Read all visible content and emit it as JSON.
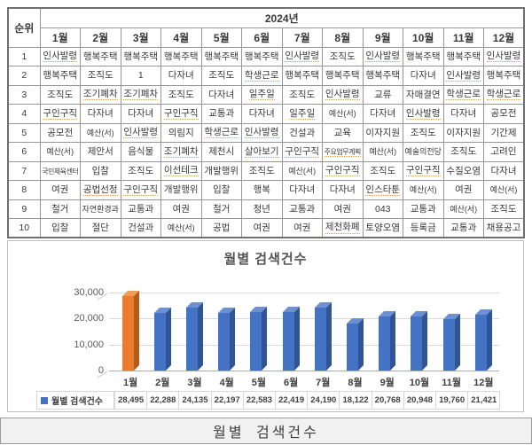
{
  "table": {
    "rank_header": "순위",
    "year_header": "2024년",
    "months": [
      "1월",
      "2월",
      "3월",
      "4월",
      "5월",
      "6월",
      "7월",
      "8월",
      "9월",
      "10월",
      "11월",
      "12월"
    ],
    "ranks": [
      "1",
      "2",
      "3",
      "4",
      "5",
      "6",
      "7",
      "8",
      "9",
      "10"
    ],
    "rows": [
      [
        "인사발령",
        "행복주택",
        "행복주택",
        "행복주택",
        "행복주택",
        "행복주택",
        "인사발령",
        "조직도",
        "인사발령",
        "행복주택",
        "행복주택",
        "인사발령"
      ],
      [
        "행복주택",
        "조직도",
        "1",
        "다자녀",
        "조직도",
        "학생근로",
        "행복주택",
        "행복주택",
        "행복주택",
        "다자녀",
        "인사발령",
        "행복주택"
      ],
      [
        "조직도",
        "조기폐차",
        "조기폐차",
        "조직도",
        "다자녀",
        "일주일",
        "조직도",
        "인사발령",
        "교류",
        "자매결연",
        "학생근로",
        "학생근로"
      ],
      [
        "구인구직",
        "다자녀",
        "다자녀",
        "구인구직",
        "교통과",
        "다자녀",
        "일주일",
        "예산(서)",
        "다자녀",
        "인사발령",
        "다자녀",
        "공모전"
      ],
      [
        "공모전",
        "예산(서)",
        "인사발령",
        "의림지",
        "학생근로",
        "인사발령",
        "건설과",
        "교육",
        "이자지원",
        "조직도",
        "이자지원",
        "기간제"
      ],
      [
        "예산(서)",
        "제안서",
        "음식물",
        "조기폐차",
        "제천시",
        "살아보기",
        "구인구직",
        "주요업무계획",
        "예산(서)",
        "예술의전당",
        "조직도",
        "고려인"
      ],
      [
        "국민체육센터",
        "입찰",
        "조직도",
        "이선테크",
        "개발행위",
        "조직도",
        "예산(서)",
        "구인구직",
        "조직도",
        "구인구직",
        "수질오염",
        "다자녀"
      ],
      [
        "여권",
        "공법선정",
        "구인구직",
        "개발행위",
        "입찰",
        "행복",
        "다자녀",
        "다자녀",
        "인스타툰",
        "예산(서)",
        "여권",
        "예산(서)"
      ],
      [
        "철거",
        "자연환경과",
        "교통과",
        "여권",
        "철거",
        "청년",
        "교통과",
        "여권",
        "043",
        "교통과",
        "예산(서)",
        "조직도"
      ],
      [
        "입찰",
        "절단",
        "건설과",
        "예산(서)",
        "공법",
        "여권",
        "여권",
        "제천화폐",
        "토양오염",
        "등록금",
        "교통과",
        "채용공고"
      ]
    ],
    "underlined_words": [
      "인사발령",
      "학생근로",
      "조기폐차",
      "구인구직",
      "일주일",
      "이선테크",
      "주요업무계획",
      "공법선정",
      "인스타툰",
      "살아보기",
      "제천화폐"
    ]
  },
  "chart_data": {
    "type": "bar",
    "title": "월별 검색건수",
    "categories": [
      "1월",
      "2월",
      "3월",
      "4월",
      "5월",
      "6월",
      "7월",
      "8월",
      "9월",
      "10월",
      "11월",
      "12월"
    ],
    "values": [
      28495,
      22288,
      24135,
      22197,
      22583,
      22419,
      24190,
      18122,
      20768,
      20948,
      19760,
      21421
    ],
    "value_labels": [
      "28,495",
      "22,288",
      "24,135",
      "22,197",
      "22,583",
      "22,419",
      "24,190",
      "18,122",
      "20,768",
      "20,948",
      "19,760",
      "21,421"
    ],
    "xlabel": "",
    "ylabel": "",
    "ylim": [
      0,
      30000
    ],
    "y_tick_labels": [
      "30,000",
      "20,000",
      "10,000",
      "0"
    ],
    "grid": true,
    "legend_label": "월별 검색건수",
    "legend_position": "bottom-data-table",
    "style": "3d-cylinder-excel",
    "bar_colors": {
      "highlight_index": 0,
      "highlight": {
        "front": "#e87e2b",
        "top": "#ef9c59",
        "side": "#b35d1d"
      },
      "normal": {
        "front": "#4472c4",
        "top": "#6d90d2",
        "side": "#2f5597"
      }
    }
  },
  "caption": "월별 검색건수",
  "colors": {
    "table_border": "#6f6f6f",
    "cell_border": "#969696",
    "grid_line": "#d9d9d9",
    "axis_line": "#ababab",
    "caption_bg": "#f1f1f1",
    "text": "#3a3a3a"
  }
}
